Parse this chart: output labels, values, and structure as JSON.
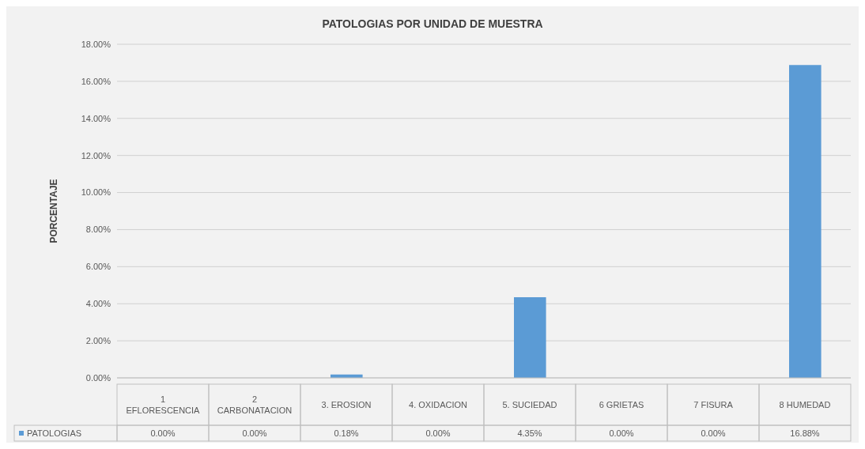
{
  "chart_data": {
    "type": "bar",
    "title": "PATOLOGIAS POR UNIDAD DE MUESTRA",
    "ylabel": "PORCENTAJE",
    "categories": [
      "1 EFLORESCENCIA",
      "2 CARBONATACION",
      "3. EROSION",
      "4. OXIDACION",
      "5. SUCIEDAD",
      "6 GRIETAS",
      "7 FISURA",
      "8 HUMEDAD"
    ],
    "series": [
      {
        "name": "PATOLOGIAS",
        "color": "#5b9bd5",
        "values": [
          0,
          0,
          0.18,
          0,
          4.35,
          0,
          0,
          16.88
        ],
        "value_labels": [
          "0.00%",
          "0.00%",
          "0.18%",
          "0.00%",
          "4.35%",
          "0.00%",
          "0.00%",
          "16.88%"
        ]
      }
    ],
    "ylim": [
      0,
      18
    ],
    "yticks": [
      {
        "value": 0,
        "label": "0.00%"
      },
      {
        "value": 2,
        "label": "2.00%"
      },
      {
        "value": 4,
        "label": "4.00%"
      },
      {
        "value": 6,
        "label": "6.00%"
      },
      {
        "value": 8,
        "label": "8.00%"
      },
      {
        "value": 10,
        "label": "10.00%"
      },
      {
        "value": 12,
        "label": "12.00%"
      },
      {
        "value": 14,
        "label": "14.00%"
      },
      {
        "value": 16,
        "label": "16.00%"
      },
      {
        "value": 18,
        "label": "18.00%"
      }
    ],
    "grid": "y",
    "legend": "bottom left"
  }
}
